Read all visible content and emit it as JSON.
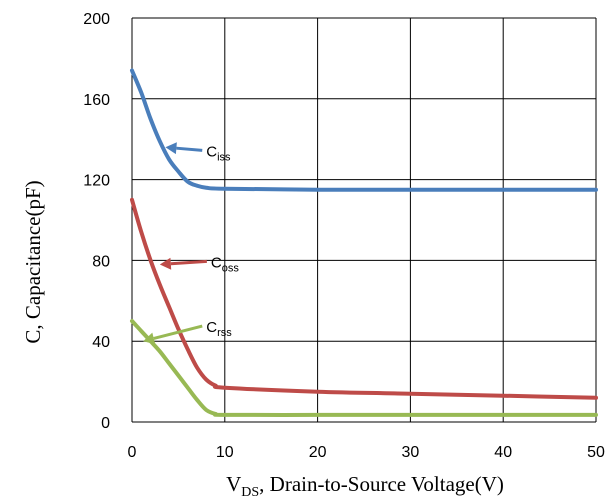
{
  "chart_data": {
    "type": "line",
    "title": "",
    "xlabel": {
      "main": "V",
      "sub": "DS",
      "rest": ", Drain-to-Source Voltage(V)"
    },
    "ylabel": "C, Capacitance(pF)",
    "xlim": [
      0,
      50
    ],
    "ylim": [
      0,
      200
    ],
    "xticks": [
      0,
      10,
      20,
      30,
      40,
      50
    ],
    "yticks": [
      0,
      40,
      80,
      120,
      160,
      200
    ],
    "xtick_labels": [
      "0",
      "10",
      "20",
      "30",
      "40",
      "50"
    ],
    "ytick_labels": [
      "0",
      "40",
      "80",
      "120",
      "160",
      "200"
    ],
    "grid": true,
    "series": [
      {
        "name": "Ciss",
        "label_main": "C",
        "label_sub": "iss",
        "color": "#4a7ebb",
        "points": [
          [
            0,
            174
          ],
          [
            1,
            163
          ],
          [
            2,
            150
          ],
          [
            3,
            139
          ],
          [
            4,
            130
          ],
          [
            5,
            124
          ],
          [
            6,
            119
          ],
          [
            7,
            117
          ],
          [
            8,
            116
          ],
          [
            10,
            115.5
          ],
          [
            20,
            115
          ],
          [
            30,
            115
          ],
          [
            40,
            115
          ],
          [
            50,
            115
          ]
        ]
      },
      {
        "name": "Coss",
        "label_main": "C",
        "label_sub": "oss",
        "color": "#be4b48",
        "points": [
          [
            0,
            110
          ],
          [
            1,
            94
          ],
          [
            2,
            80
          ],
          [
            3,
            68
          ],
          [
            4,
            57
          ],
          [
            5,
            46
          ],
          [
            6,
            36
          ],
          [
            7,
            27
          ],
          [
            8,
            21
          ],
          [
            9,
            18
          ],
          [
            10,
            17
          ],
          [
            20,
            15
          ],
          [
            30,
            14
          ],
          [
            40,
            13
          ],
          [
            50,
            12
          ]
        ]
      },
      {
        "name": "Crss",
        "label_main": "C",
        "label_sub": "rss",
        "color": "#98b954",
        "points": [
          [
            0,
            50
          ],
          [
            1,
            45
          ],
          [
            2,
            40
          ],
          [
            3,
            35
          ],
          [
            4,
            29
          ],
          [
            5,
            23
          ],
          [
            6,
            17
          ],
          [
            7,
            11
          ],
          [
            8,
            6
          ],
          [
            9,
            4
          ],
          [
            10,
            3.5
          ],
          [
            20,
            3.5
          ],
          [
            30,
            3.5
          ],
          [
            40,
            3.5
          ],
          [
            50,
            3.5
          ]
        ]
      }
    ],
    "annotations": [
      {
        "series": "Ciss",
        "text_pos": [
          8,
          134
        ],
        "arrow_to": [
          3.6,
          136
        ]
      },
      {
        "series": "Coss",
        "text_pos": [
          8.5,
          79
        ],
        "arrow_to": [
          3.0,
          78
        ]
      },
      {
        "series": "Crss",
        "text_pos": [
          8,
          47
        ],
        "arrow_to": [
          1.2,
          40
        ]
      }
    ]
  }
}
